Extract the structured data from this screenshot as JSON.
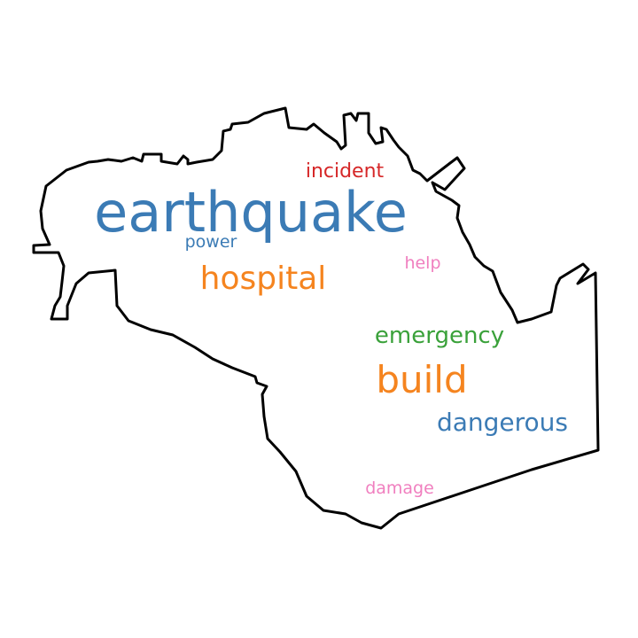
{
  "outline": {
    "stroke": "#000000"
  },
  "words": [
    {
      "text": "earthquake",
      "color": "#3b7bb5"
    },
    {
      "text": "hospital",
      "color": "#f5841f"
    },
    {
      "text": "build",
      "color": "#f5841f"
    },
    {
      "text": "emergency",
      "color": "#3aa13a"
    },
    {
      "text": "dangerous",
      "color": "#3b7bb5"
    },
    {
      "text": "incident",
      "color": "#d62728"
    },
    {
      "text": "power",
      "color": "#3b7bb5"
    },
    {
      "text": "help",
      "color": "#f07fbf"
    },
    {
      "text": "damage",
      "color": "#f07fbf"
    }
  ]
}
